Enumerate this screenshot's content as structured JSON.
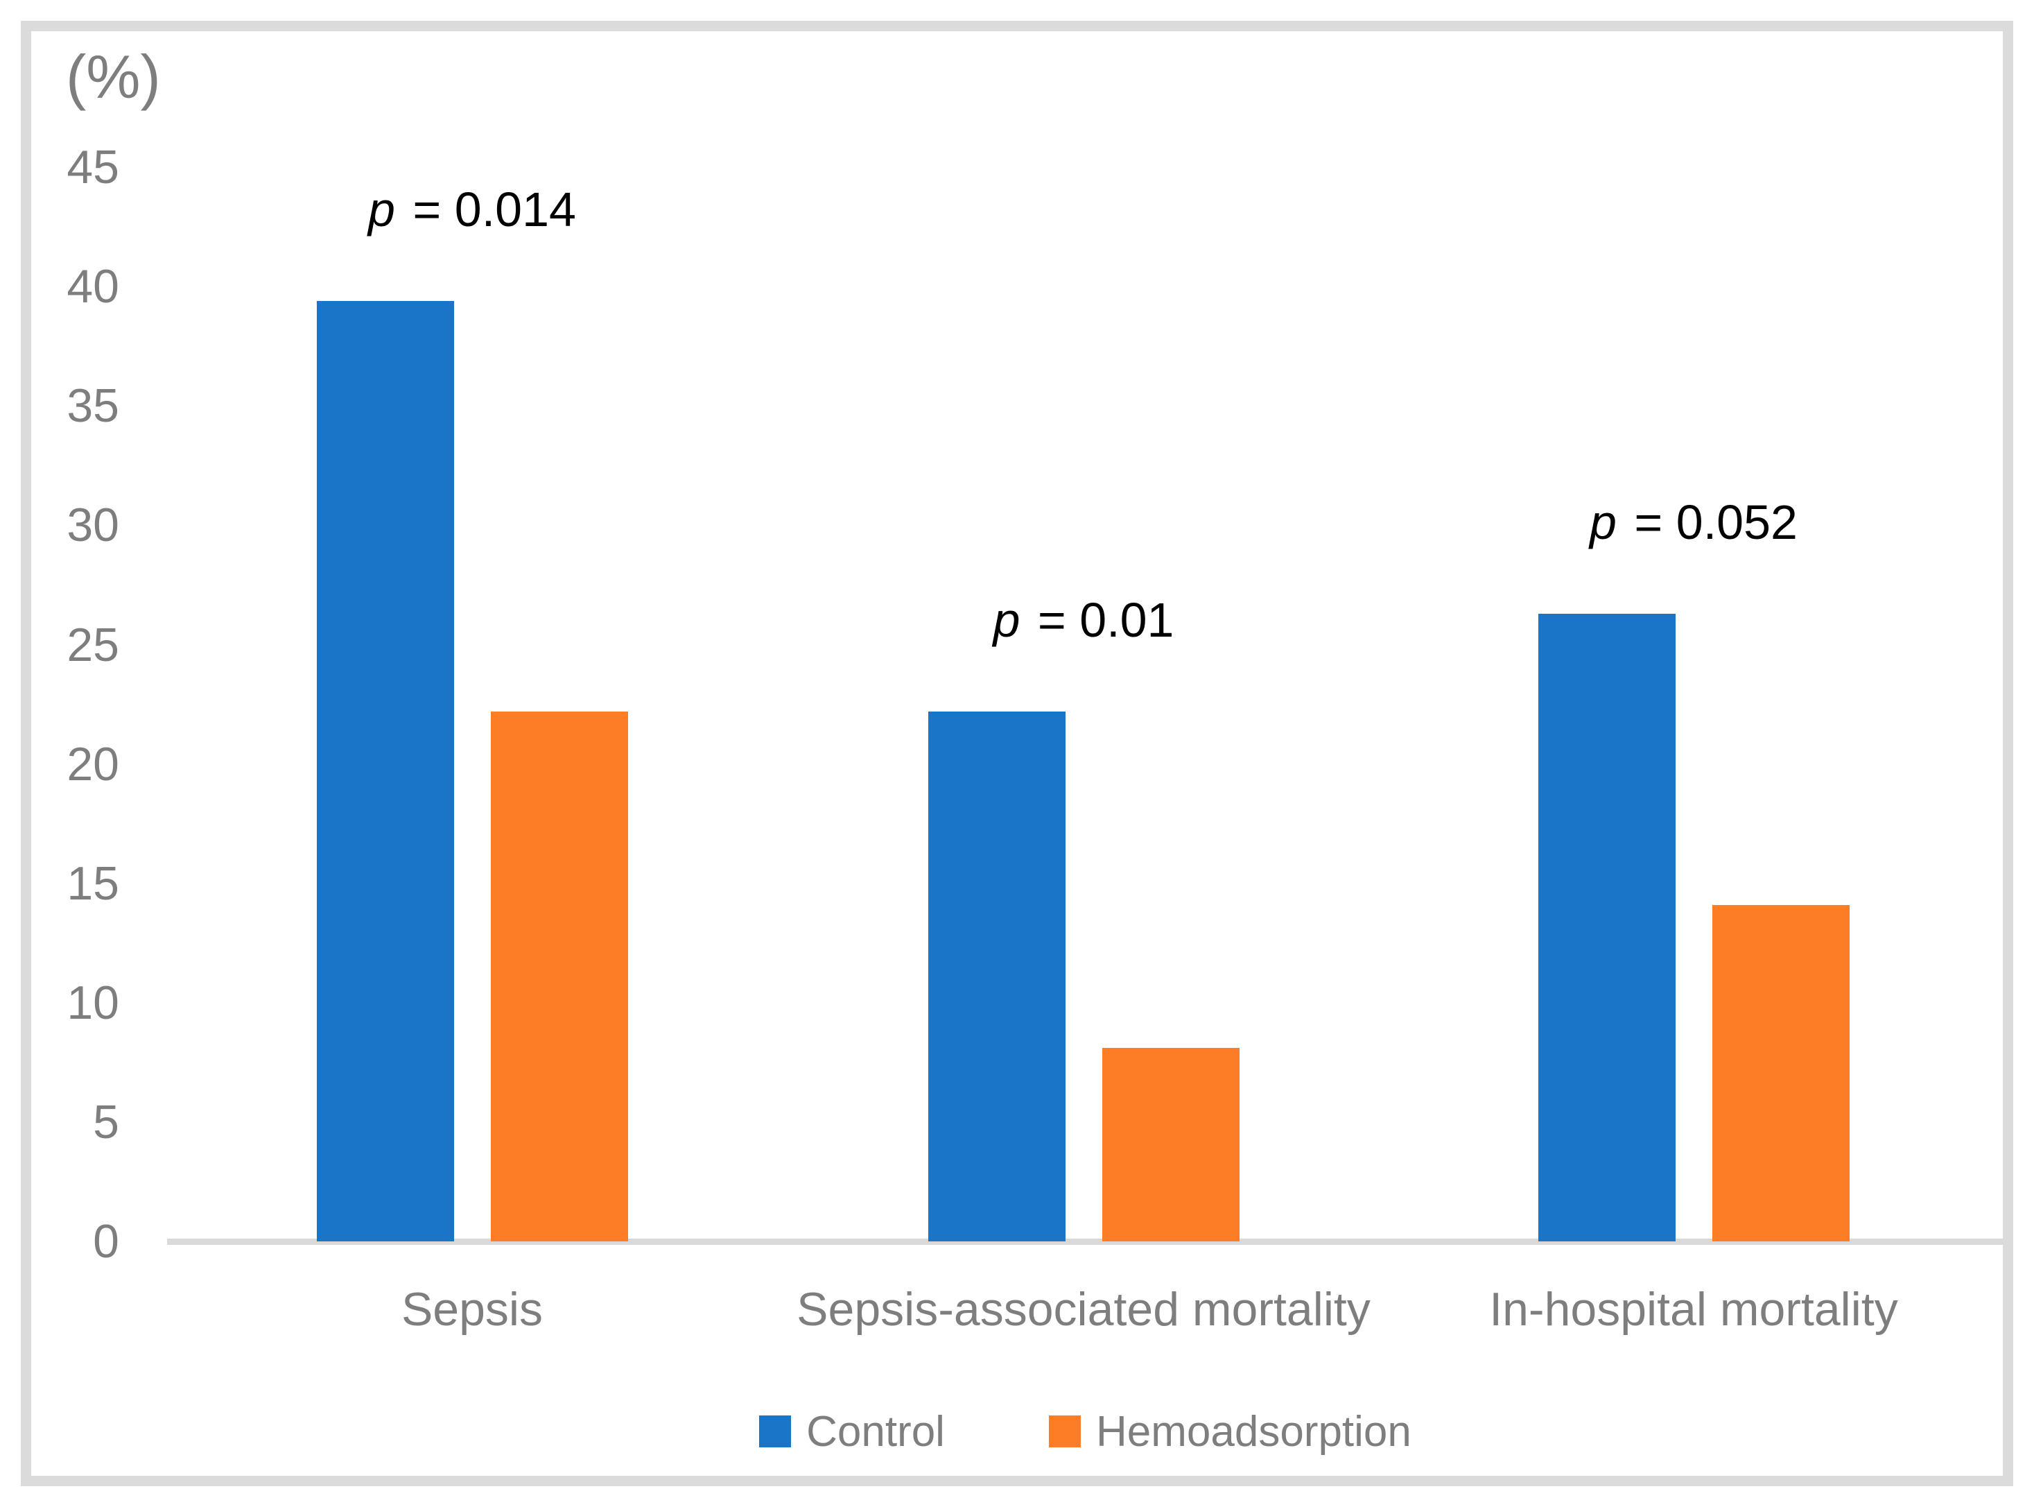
{
  "figure": {
    "unit_label": "(%)"
  },
  "colors": {
    "control_blue": "#1a74c8",
    "hemoadsorption_orange": "#fc7d26",
    "text_gray": "#7e7e7e",
    "annotation_black": "#000000",
    "frame_gray": "#dbdbdb",
    "axis_gray": "#d9d9d9"
  },
  "chart_data": {
    "type": "bar",
    "title": "",
    "xlabel": "",
    "ylabel": "(%)",
    "ylim": [
      0,
      45
    ],
    "ytick_step": 5,
    "ytick_labels": [
      "0",
      "5",
      "10",
      "15",
      "20",
      "25",
      "30",
      "35",
      "40",
      "45"
    ],
    "grid": false,
    "legend_position": "bottom",
    "categories": [
      "Sepsis",
      "Sepsis-associated mortality",
      "In-hospital mortality"
    ],
    "series": [
      {
        "name": "Control",
        "color": "#1a74c8",
        "values": [
          39.4,
          22.2,
          26.3
        ]
      },
      {
        "name": "Hemoadsorption",
        "color": "#fc7d26",
        "values": [
          22.2,
          8.1,
          14.1
        ]
      }
    ],
    "annotations": [
      {
        "category": "Sepsis",
        "text": "p = 0.014"
      },
      {
        "category": "Sepsis-associated mortality",
        "text": "p = 0.01"
      },
      {
        "category": "In-hospital mortality",
        "text": "p = 0.052"
      }
    ]
  }
}
